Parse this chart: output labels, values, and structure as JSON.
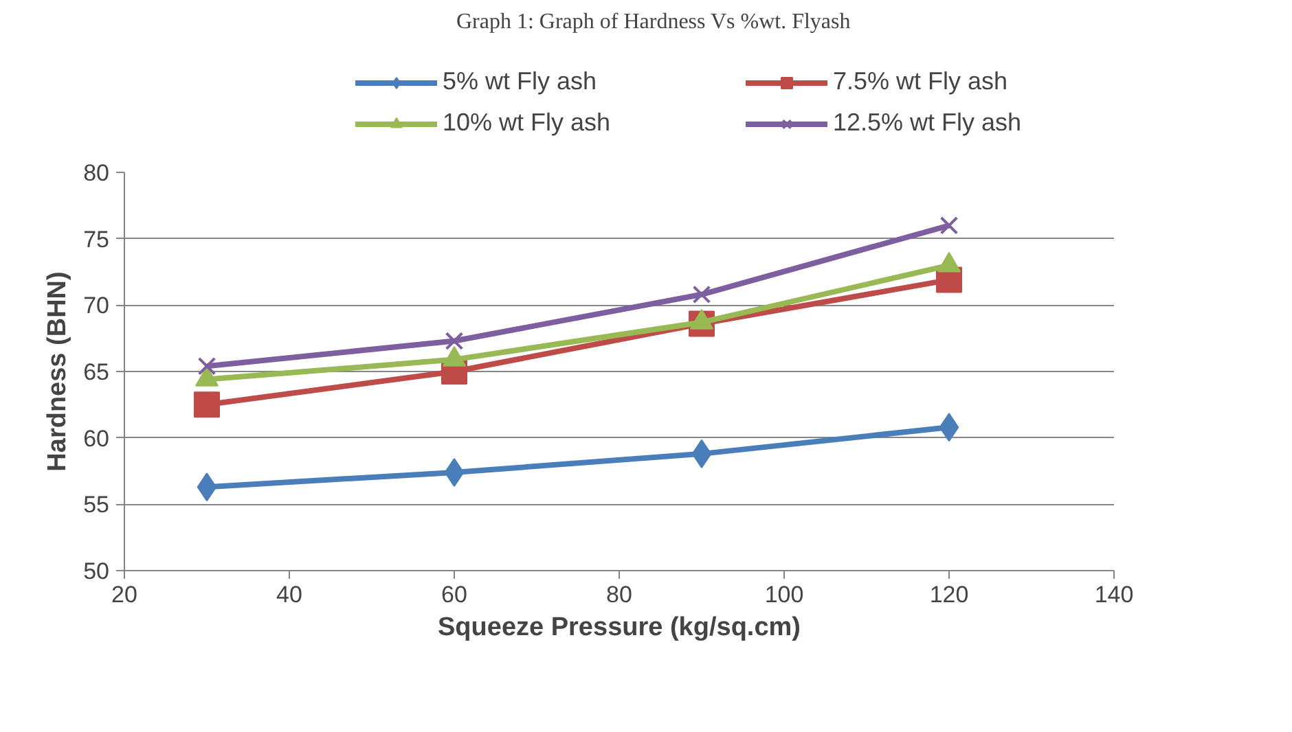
{
  "chart_data": {
    "type": "line",
    "title": "Graph 1: Graph of Hardness Vs %wt. Flyash",
    "xlabel": "Squeeze Pressure (kg/sq.cm)",
    "ylabel": "Hardness (BHN)",
    "x": [
      30,
      60,
      90,
      120
    ],
    "series": [
      {
        "name": "5% wt Fly ash",
        "color": "#4a7ebb",
        "marker": "diamond",
        "values": [
          56.3,
          57.4,
          58.8,
          60.8
        ]
      },
      {
        "name": "7.5% wt Fly ash",
        "color": "#be4b48",
        "marker": "square",
        "values": [
          62.5,
          65.0,
          68.6,
          71.9
        ]
      },
      {
        "name": "10% wt Fly ash",
        "color": "#98b954",
        "marker": "triangle",
        "values": [
          64.4,
          65.9,
          68.7,
          73.0
        ]
      },
      {
        "name": "12.5% wt Fly ash",
        "color": "#7d5fa0",
        "marker": "cross",
        "values": [
          65.4,
          67.3,
          70.8,
          76.0
        ]
      }
    ],
    "xlim": [
      20,
      140
    ],
    "xticks": [
      20,
      40,
      60,
      80,
      100,
      120,
      140
    ],
    "ylim": [
      50,
      80
    ],
    "yticks": [
      50,
      55,
      60,
      65,
      70,
      75,
      80
    ],
    "grid": "y",
    "legend": "top"
  }
}
